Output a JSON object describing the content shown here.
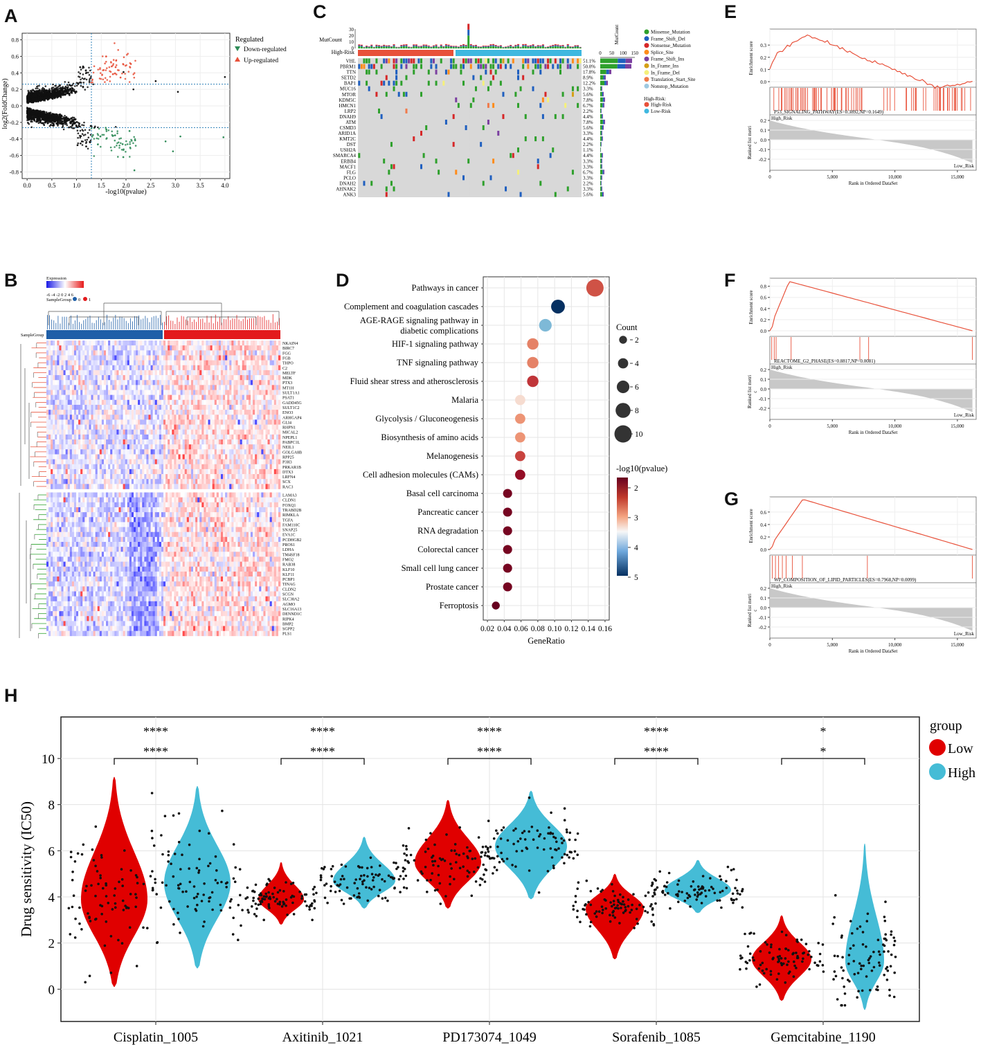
{
  "panels": {
    "A": "A",
    "B": "B",
    "C": "C",
    "D": "D",
    "E": "E",
    "F": "F",
    "G": "G",
    "H": "H"
  },
  "volcano": {
    "type": "scatter",
    "xlabel": "-log10(pvalue)",
    "ylabel": "log2(FoldChange)",
    "xticks": [
      "0.0",
      "0.5",
      "1.0",
      "1.5",
      "2.0",
      "2.5",
      "3.0",
      "3.5",
      "4.0"
    ],
    "yticks": [
      "0.8",
      "0.6",
      "0.4",
      "0.2",
      "0.0",
      "-0.2",
      "-0.4",
      "-0.6",
      "-0.8"
    ],
    "xlim": [
      -0.1,
      4.1
    ],
    "ylim": [
      -0.88,
      0.88
    ],
    "vline": 1.3,
    "hlines": [
      0.263,
      -0.263
    ],
    "legend_title": "Regulated",
    "legend": [
      "Down-regulated",
      "Up-regulated"
    ],
    "colors": {
      "down": "#2e8b57",
      "up": "#e8513a",
      "ns": "#111111"
    }
  },
  "oncoplot": {
    "mutcount_label": "MutCount",
    "mutcount_ticks": [
      "30",
      "20",
      "10",
      "0"
    ],
    "risk_label": "High-Risk",
    "genes": [
      "VHL",
      "PBRM1",
      "TTN",
      "SETD2",
      "BAP1",
      "MUC16",
      "MTOR",
      "KDM5C",
      "HMCN1",
      "LRP2",
      "DNAH9",
      "ATM",
      "CSMD3",
      "ARID1A",
      "KMT2C",
      "DST",
      "USH2A",
      "SMARCA4",
      "ERBB4",
      "MACF1",
      "FLG",
      "PCLO",
      "DNAH2",
      "AHNAK2",
      "ANK3"
    ],
    "pct": [
      "51.1%",
      "50.0%",
      "17.8%",
      "8.9%",
      "12.2%",
      "3.3%",
      "5.6%",
      "7.8%",
      "6.7%",
      "2.2%",
      "4.4%",
      "7.8%",
      "5.6%",
      "3.3%",
      "4.4%",
      "2.2%",
      "1.1%",
      "4.4%",
      "3.3%",
      "3.3%",
      "6.7%",
      "3.3%",
      "2.2%",
      "3.3%",
      "5.6%"
    ],
    "bar_values": [
      46,
      45,
      16,
      8,
      11,
      3,
      5,
      7,
      6,
      2,
      4,
      7,
      5,
      3,
      4,
      2,
      1,
      4,
      3,
      3,
      6,
      3,
      2,
      3,
      5
    ],
    "side_title": "MutCount",
    "side_ticks": [
      "0",
      "50",
      "100",
      "150"
    ],
    "legend": [
      "Missense_Mutation",
      "Frame_Shift_Del",
      "Nonsense_Mutation",
      "Splice_Site",
      "Frame_Shift_Ins",
      "In_Frame_Ins",
      "In_Frame_Del",
      "Translation_Start_Site",
      "Nonstop_Mutation"
    ],
    "legend_colors": [
      "#2ea02c",
      "#1f5fbf",
      "#d62728",
      "#ff8c1a",
      "#7b3fa0",
      "#d4a017",
      "#f5f07a",
      "#f07a4a",
      "#9ec9e0"
    ],
    "risk_legend_title": "High-Risk:",
    "risk_legend": [
      "High-Risk",
      "Low-Risk"
    ],
    "risk_colors": [
      "#e8513a",
      "#3fb8e0"
    ]
  },
  "heatmap": {
    "legend_title": "Expression",
    "legend_ticks": "-6 -4 -2 0 2 4 6",
    "samplegroup_label": "SampleGroup",
    "samplegroup_vals": [
      "0",
      "1"
    ],
    "row_label": "SampleGroup",
    "genes_top": [
      "NKAIN4",
      "BIRC7",
      "FGG",
      "FGB",
      "THPO",
      "C2",
      "MELTF",
      "MDK",
      "PTX3",
      "MT1H",
      "SULT1A1",
      "PSAT1",
      "GADD45G",
      "SULT1C2",
      "ENO3",
      "ARHGAP4",
      "GLI4",
      "RHPN1",
      "MICAL2",
      "NPEPL1",
      "PABPC1L",
      "NEIL1",
      "GOLGA8B",
      "RPP25",
      "P3H3",
      "PRKAR1B",
      "DTX3",
      "LRFN4",
      "SCX",
      "RAC3"
    ],
    "genes_bottom": [
      "LAMA3",
      "CLDN1",
      "FOXQ1",
      "TRABD2B",
      "RIMKLA",
      "TGFA",
      "FAM110C",
      "SNAP25",
      "EVA1C",
      "PCDHGB2",
      "PROS1",
      "LDHA",
      "TM4SF18",
      "FMO2",
      "RAB38",
      "KLF10",
      "KLF11",
      "PCBP1",
      "TINAG",
      "CLDN2",
      "SCGN",
      "SLC38A2",
      "AGMO",
      "SLC16A13",
      "DENND1C",
      "RIPK4",
      "BMP2",
      "SGPP2",
      "PLS1"
    ]
  },
  "kegg": {
    "type": "scatter",
    "xlabel": "GeneRatio",
    "xticks": [
      "0.02",
      "0.04",
      "0.06",
      "0.08",
      "0.10",
      "0.12",
      "0.14",
      "0.16"
    ],
    "xlim": [
      0.015,
      0.165
    ],
    "terms": [
      "Pathways in cancer",
      "Complement and coagulation cascades",
      "AGE-RAGE signaling pathway in|diabetic complications",
      "HIF-1 signaling pathway",
      "TNF signaling pathway",
      "Fluid shear stress and atherosclerosis",
      "Malaria",
      "Glycolysis / Gluconeogenesis",
      "Biosynthesis of amino acids",
      "Melanogenesis",
      "Cell adhesion molecules (CAMs)",
      "Basal cell carcinoma",
      "Pancreatic cancer",
      "RNA degradation",
      "Colorectal cancer",
      "Small cell lung cancer",
      "Prostate cancer",
      "Ferroptosis"
    ],
    "gene_ratio": [
      0.148,
      0.104,
      0.089,
      0.074,
      0.074,
      0.074,
      0.059,
      0.059,
      0.059,
      0.059,
      0.059,
      0.044,
      0.044,
      0.044,
      0.044,
      0.044,
      0.044,
      0.03
    ],
    "count": [
      10,
      7,
      6,
      5,
      5,
      5,
      4,
      4,
      4,
      4,
      4,
      3,
      3,
      3,
      3,
      3,
      3,
      2
    ],
    "neglog10p": [
      2.6,
      5.0,
      4.1,
      2.9,
      2.9,
      2.4,
      3.3,
      3.0,
      3.0,
      2.5,
      2.0,
      1.8,
      1.8,
      1.8,
      1.8,
      1.8,
      1.8,
      1.7
    ],
    "size_legend_title": "Count",
    "size_legend": [
      "2",
      "4",
      "6",
      "8",
      "10"
    ],
    "color_legend_title": "-log10(pvalue)",
    "color_legend": [
      "2",
      "3",
      "4",
      "5"
    ]
  },
  "gsea": [
    {
      "panel": "E",
      "ylabel": "Enrichment score",
      "yticks": [
        "0.3",
        "0.2",
        "0.1",
        "0.0"
      ],
      "term": "P53_SIGNALING_PATHWAY(ES=0.3892,NP=0.1649)",
      "es_peak": 0.3892,
      "rank_ylabel": "Ranked list metri|c",
      "rank_yticks": [
        "0.2",
        "0.1",
        "0.0",
        "-0.1",
        "-0.2"
      ],
      "high": "High_Risk",
      "low": "Low_Risk",
      "xlabel": "Rank in Ordered DataSet",
      "xticks": [
        "0",
        "5,000",
        "10,000",
        "15,000"
      ]
    },
    {
      "panel": "F",
      "ylabel": "Enrichment score",
      "yticks": [
        "0.8",
        "0.6",
        "0.4",
        "0.2",
        "0.0"
      ],
      "term": "REACTOME_G2_PHASE(ES=0.8817,NP=0.0081)",
      "es_peak": 0.8817,
      "rank_ylabel": "Ranked list metri|c",
      "rank_yticks": [
        "0.2",
        "0.1",
        "0.0",
        "-0.1",
        "-0.2"
      ],
      "high": "High_Risk",
      "low": "Low_Risk",
      "xlabel": "Rank in Ordered DataSet",
      "xticks": [
        "0",
        "5,000",
        "10,000",
        "15,000"
      ]
    },
    {
      "panel": "G",
      "ylabel": "Enrichment score",
      "yticks": [
        "0.6",
        "0.4",
        "0.2",
        "0.0"
      ],
      "term": "WP_COMPOSITION_OF_LIPID_PARTICLES(ES=0.7968,NP=0.0099)",
      "es_peak": 0.7968,
      "rank_ylabel": "Ranked list metri|c",
      "rank_yticks": [
        "0.2",
        "0.1",
        "0.0",
        "-0.1",
        "-0.2"
      ],
      "high": "High_Risk",
      "low": "Low_Risk",
      "xlabel": "Rank in Ordered DataSet",
      "xticks": [
        "0",
        "5,000",
        "10,000",
        "15,000"
      ]
    }
  ],
  "chart_data": {
    "type": "violin",
    "ylabel": "Drug sensitivity (IC50)",
    "ylim": [
      -1.4,
      11.8
    ],
    "yticks": [
      "0",
      "2",
      "4",
      "6",
      "8",
      "10"
    ],
    "categories": [
      "Cisplatin_1005",
      "Axitinib_1021",
      "PD173074_1049",
      "Sorafenib_1085",
      "Gemcitabine_1190"
    ],
    "series": [
      {
        "name": "Low",
        "color": "#e00000",
        "median": [
          3.9,
          3.9,
          5.5,
          3.5,
          1.3
        ],
        "min": [
          0.1,
          2.8,
          3.5,
          1.3,
          -0.5
        ],
        "max": [
          9.2,
          5.5,
          8.2,
          5.0,
          3.2
        ]
      },
      {
        "name": "High",
        "color": "#45bcd6",
        "median": [
          4.6,
          4.7,
          6.2,
          4.3,
          1.2
        ],
        "min": [
          0.9,
          3.5,
          3.9,
          3.3,
          -0.9
        ],
        "max": [
          8.8,
          6.6,
          8.6,
          5.6,
          6.3
        ]
      }
    ],
    "significance": [
      [
        "****",
        "****"
      ],
      [
        "****",
        "****"
      ],
      [
        "****",
        "****"
      ],
      [
        "****",
        "****"
      ],
      [
        "*",
        "*"
      ]
    ],
    "legend_title": "group"
  }
}
